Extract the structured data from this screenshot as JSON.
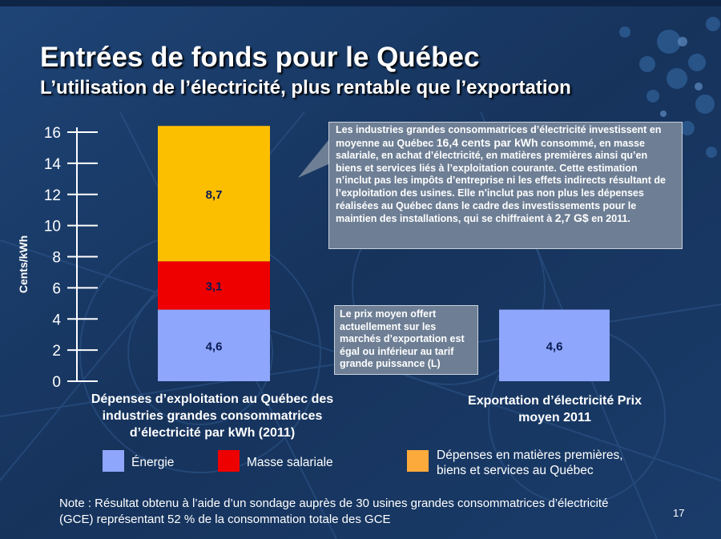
{
  "slide": {
    "title": "Entrées de fonds pour le Québec",
    "subtitle": "L’utilisation de l’électricité, plus rentable que l’exportation",
    "page_number": "17",
    "note": "Note : Résultat obtenu à l’aide d’un sondage auprès de 30 usines grandes consommatrices d’électricité (GCE) représentant 52 % de la consommation totale des GCE"
  },
  "callouts": {
    "main": {
      "part1": "Les industries grandes consommatrices d’électricité investissent en moyenne au Québec ",
      "highlight1": "16,4 cents par kWh",
      "part2": " consommé, en masse salariale, en achat d’électricité, en matières premières ainsi qu’en biens et services liés à l’exploitation courante. Cette estimation n’inclut pas les impôts d’entreprise ni les effets indirects résultant de l’exploitation des usines. Elle n’inclut pas non plus les dépenses réalisées au Québec dans le cadre des investissements pour le maintien des installations, qui se chiffraient à ",
      "highlight2": "2,7 G$",
      "part3": " en 2011."
    },
    "export": "Le prix moyen offert actuellement sur les marchés d’exportation est égal ou inférieur au tarif grande puissance (L)"
  },
  "colors": {
    "background": "#1b3a66",
    "energie": "#8ea6fb",
    "masse_salariale": "#ee0000",
    "depenses": "#fcbf00",
    "callout": "#6e7f95"
  },
  "chart_data": {
    "type": "bar",
    "stacked": true,
    "ylabel": "Cents/kWh",
    "ylim": [
      0,
      16
    ],
    "yticks": [
      0,
      2,
      4,
      6,
      8,
      10,
      12,
      14,
      16
    ],
    "categories": [
      "Dépenses d’exploitation au Québec des industries grandes consommatrices d’électricité par kWh (2011)",
      "Exportation d’électricité Prix moyen 2011"
    ],
    "series": [
      {
        "name": "Énergie",
        "values": [
          4.6,
          4.6
        ],
        "labels": [
          "4,6",
          "4,6"
        ]
      },
      {
        "name": "Masse salariale",
        "values": [
          3.1,
          0
        ],
        "labels": [
          "3,1",
          ""
        ]
      },
      {
        "name": "Dépenses en matières premières, biens et services au Québec",
        "values": [
          8.7,
          0
        ],
        "labels": [
          "8,7",
          ""
        ]
      }
    ]
  },
  "legend": [
    {
      "label": "Énergie",
      "color": "#8ea6fb"
    },
    {
      "label": "Masse salariale",
      "color": "#ee0000"
    },
    {
      "label": "Dépenses en matières premières, biens et services au Québec",
      "color": "#fcaa3c"
    }
  ]
}
